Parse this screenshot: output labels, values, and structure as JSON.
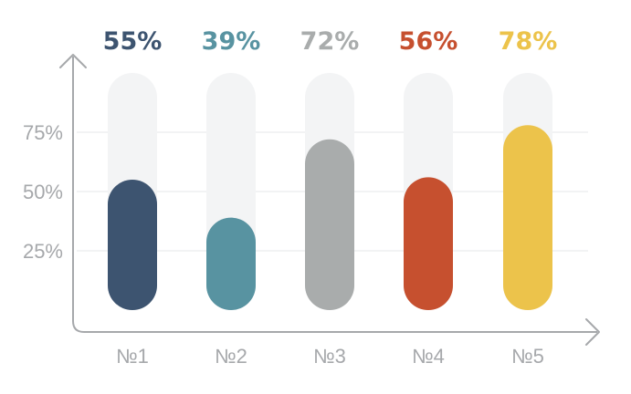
{
  "chart_data": {
    "type": "bar",
    "categories": [
      "№1",
      "№2",
      "№3",
      "№4",
      "№5"
    ],
    "values": [
      55,
      39,
      72,
      56,
      78
    ],
    "data_labels": [
      "55%",
      "39%",
      "72%",
      "56%",
      "78%"
    ],
    "colors": [
      "#3d5470",
      "#5893a1",
      "#a9acac",
      "#c6502f",
      "#ecc34b"
    ],
    "track_color": "#f3f4f5",
    "axis_color": "#a6a8ab",
    "ylim": [
      0,
      100
    ],
    "yticks": [
      25,
      50,
      75
    ],
    "ytick_labels": [
      "25%",
      "50%",
      "75%"
    ],
    "grid": true,
    "title": "",
    "xlabel": "",
    "ylabel": ""
  }
}
